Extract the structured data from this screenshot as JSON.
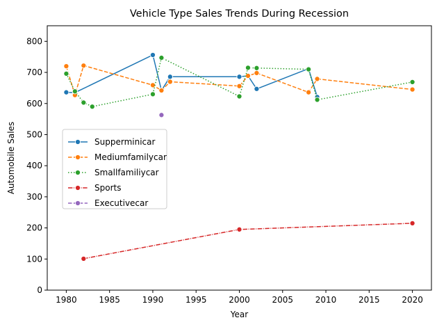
{
  "chart_data": {
    "type": "line",
    "title": "Vehicle Type Sales Trends During Recession",
    "xlabel": "Year",
    "ylabel": "Automobile Sales",
    "xlim": [
      1977.8,
      2022.2
    ],
    "ylim": [
      0,
      850
    ],
    "xticks": [
      1980,
      1985,
      1990,
      1995,
      2000,
      2005,
      2010,
      2015,
      2020
    ],
    "yticks": [
      0,
      100,
      200,
      300,
      400,
      500,
      600,
      700,
      800
    ],
    "grid": false,
    "legend_position": "center-left",
    "series": [
      {
        "name": "Supperminicar",
        "color": "#1f77b4",
        "dash": "solid",
        "points": [
          [
            1980,
            636
          ],
          [
            1981,
            635
          ],
          [
            1990,
            756
          ],
          [
            1991,
            642
          ],
          [
            1992,
            686
          ],
          [
            2000,
            686
          ],
          [
            2001,
            689
          ],
          [
            2002,
            647
          ],
          [
            2008,
            712
          ],
          [
            2009,
            621
          ]
        ]
      },
      {
        "name": "Mediumfamilycar",
        "color": "#ff7f0e",
        "dash": "dashed",
        "points": [
          [
            1980,
            720
          ],
          [
            1981,
            627
          ],
          [
            1982,
            722
          ],
          [
            1990,
            659
          ],
          [
            1991,
            642
          ],
          [
            1992,
            670
          ],
          [
            2000,
            656
          ],
          [
            2001,
            689
          ],
          [
            2002,
            698
          ],
          [
            2008,
            636
          ],
          [
            2009,
            679
          ],
          [
            2020,
            645
          ]
        ]
      },
      {
        "name": "Smallfamiliycar",
        "color": "#2ca02c",
        "dash": "dotted",
        "points": [
          [
            1980,
            696
          ],
          [
            1981,
            639
          ],
          [
            1982,
            603
          ],
          [
            1983,
            590
          ],
          [
            1990,
            630
          ],
          [
            1991,
            747
          ],
          [
            2000,
            623
          ],
          [
            2001,
            715
          ],
          [
            2002,
            714
          ],
          [
            2008,
            710
          ],
          [
            2009,
            612
          ],
          [
            2020,
            669
          ]
        ]
      },
      {
        "name": "Sports",
        "color": "#d62728",
        "dash": "dashdot",
        "points": [
          [
            1982,
            101
          ],
          [
            2000,
            195
          ],
          [
            2020,
            215
          ]
        ]
      },
      {
        "name": "Executivecar",
        "color": "#9467bd",
        "dash": "dashed",
        "points": [
          [
            1991,
            563
          ]
        ]
      }
    ]
  }
}
